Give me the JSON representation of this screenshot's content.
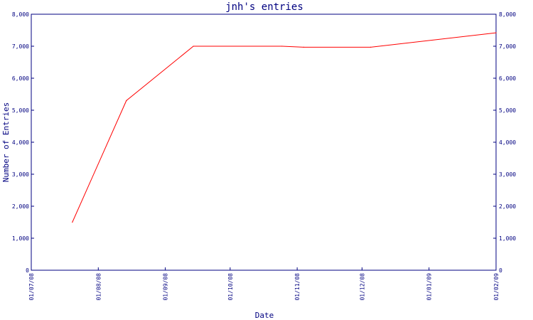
{
  "chart_data": {
    "type": "line",
    "title": "jnh's entries",
    "xlabel": "Date",
    "ylabel": "Number of Entries",
    "ylim": [
      0,
      8000
    ],
    "y_ticks": [
      {
        "value": 0,
        "label": "0"
      },
      {
        "value": 1000,
        "label": "1,000"
      },
      {
        "value": 2000,
        "label": "2,000"
      },
      {
        "value": 3000,
        "label": "3,000"
      },
      {
        "value": 4000,
        "label": "4,000"
      },
      {
        "value": 5000,
        "label": "5,000"
      },
      {
        "value": 6000,
        "label": "6,000"
      },
      {
        "value": 7000,
        "label": "7,000"
      },
      {
        "value": 8000,
        "label": "8,000"
      }
    ],
    "xlim": [
      "2008-07-01",
      "2009-02-01"
    ],
    "x_ticks": [
      {
        "date": "2008-07-01",
        "label": "01/07/08"
      },
      {
        "date": "2008-08-01",
        "label": "01/08/08"
      },
      {
        "date": "2008-09-01",
        "label": "01/09/08"
      },
      {
        "date": "2008-10-01",
        "label": "01/10/08"
      },
      {
        "date": "2008-11-01",
        "label": "01/11/08"
      },
      {
        "date": "2008-12-01",
        "label": "01/12/08"
      },
      {
        "date": "2009-01-01",
        "label": "01/01/09"
      },
      {
        "date": "2009-02-01",
        "label": "01/02/09"
      }
    ],
    "grid": false,
    "series": [
      {
        "color": "#ff0000",
        "points": [
          {
            "x": "2008-07-20",
            "y": 1500
          },
          {
            "x": "2008-08-14",
            "y": 5300
          },
          {
            "x": "2008-09-14",
            "y": 7000
          },
          {
            "x": "2008-10-25",
            "y": 7000
          },
          {
            "x": "2008-11-04",
            "y": 6970
          },
          {
            "x": "2008-12-05",
            "y": 6970
          },
          {
            "x": "2009-02-01",
            "y": 7420
          }
        ]
      }
    ],
    "colors": {
      "axis": "#000080",
      "text": "#000080",
      "line": "#ff0000"
    }
  }
}
